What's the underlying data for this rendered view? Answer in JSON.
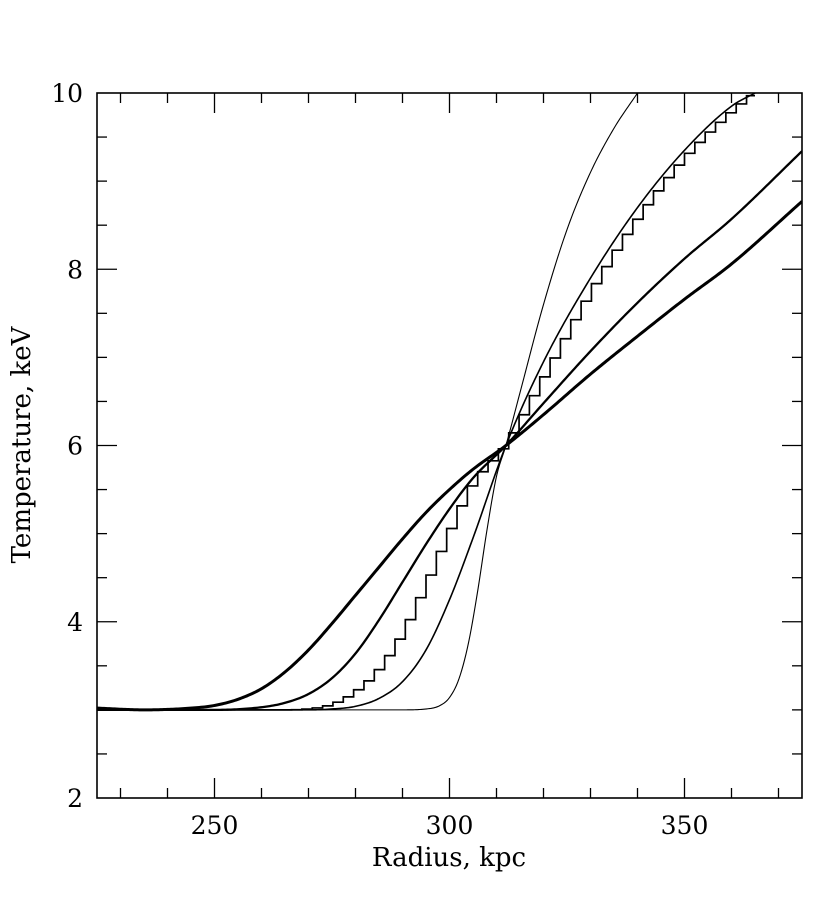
{
  "chart_data": {
    "type": "line",
    "title": "",
    "xlabel": "Radius, kpc",
    "ylabel": "Temperature, keV",
    "xlim": [
      225,
      375
    ],
    "ylim": [
      2,
      10
    ],
    "x_ticks": [
      250,
      300,
      350
    ],
    "y_ticks": [
      2,
      4,
      6,
      8,
      10
    ],
    "x_tick_labels": [
      "250",
      "300",
      "350"
    ],
    "y_tick_labels": [
      "2",
      "4",
      "6",
      "8",
      "10"
    ],
    "grid": false,
    "legend": "none",
    "series": [
      {
        "style": "thin",
        "x": [
          225,
          240,
          260,
          280,
          290,
          295,
          298,
          300,
          302,
          304,
          306,
          308,
          310,
          312,
          315,
          320,
          325,
          330,
          335,
          340
        ],
        "y": [
          3.0,
          3.0,
          3.0,
          3.0,
          3.0,
          3.01,
          3.05,
          3.14,
          3.35,
          3.75,
          4.35,
          5.05,
          5.65,
          6.0,
          6.6,
          7.6,
          8.45,
          9.1,
          9.6,
          10.0
        ]
      },
      {
        "style": "medium",
        "x": [
          225,
          250,
          260,
          265,
          270,
          275,
          280,
          285,
          290,
          295,
          300,
          305,
          312,
          320,
          330,
          340,
          350,
          360,
          365
        ],
        "y": [
          3.0,
          3.0,
          3.0,
          3.0,
          3.0,
          3.01,
          3.04,
          3.13,
          3.32,
          3.68,
          4.25,
          4.95,
          6.0,
          6.95,
          7.9,
          8.7,
          9.35,
          9.85,
          10.0
        ]
      },
      {
        "style": "step",
        "x": [
          225,
          250,
          260,
          265,
          270,
          275,
          280,
          285,
          290,
          295,
          300,
          305,
          312,
          320,
          330,
          340,
          350,
          360,
          365
        ],
        "y": [
          3.0,
          3.0,
          3.0,
          3.0,
          3.01,
          3.06,
          3.2,
          3.45,
          3.85,
          4.4,
          5.0,
          5.55,
          6.0,
          6.75,
          7.72,
          8.56,
          9.25,
          9.78,
          10.0
        ]
      },
      {
        "style": "thick",
        "x": [
          225,
          250,
          260,
          265,
          270,
          275,
          280,
          285,
          290,
          295,
          300,
          305,
          312,
          320,
          330,
          340,
          350,
          360,
          375
        ],
        "y": [
          3.0,
          3.0,
          3.03,
          3.08,
          3.18,
          3.36,
          3.64,
          4.02,
          4.45,
          4.88,
          5.28,
          5.63,
          6.0,
          6.48,
          7.07,
          7.62,
          8.12,
          8.57,
          9.34
        ]
      },
      {
        "style": "thickest",
        "x": [
          225,
          235,
          245,
          250,
          255,
          260,
          265,
          270,
          275,
          280,
          285,
          290,
          295,
          300,
          305,
          312,
          320,
          330,
          340,
          350,
          360,
          375
        ],
        "y": [
          3.02,
          3.0,
          3.02,
          3.05,
          3.12,
          3.24,
          3.43,
          3.68,
          3.98,
          4.3,
          4.62,
          4.94,
          5.24,
          5.5,
          5.73,
          6.0,
          6.35,
          6.81,
          7.24,
          7.66,
          8.06,
          8.77
        ]
      }
    ]
  }
}
